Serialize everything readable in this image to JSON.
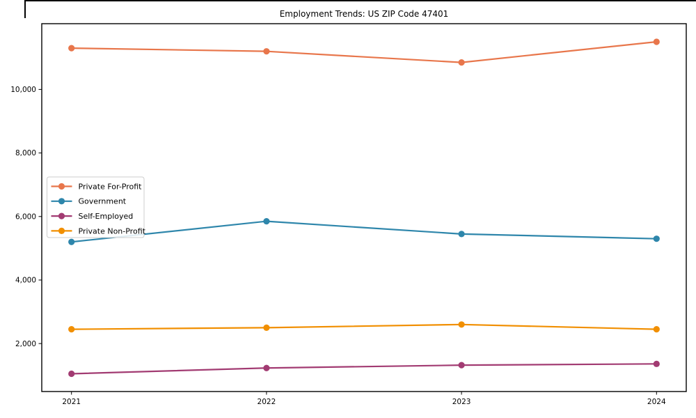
{
  "figure": {
    "background": "#ffffff",
    "frame_color": "#000000"
  },
  "chart_data": {
    "type": "line",
    "title": "Employment Trends: US ZIP Code 47401",
    "xlabel": "",
    "ylabel": "",
    "x": [
      2021,
      2022,
      2023,
      2024
    ],
    "x_tick_labels": [
      "2021",
      "2022",
      "2023",
      "2024"
    ],
    "y_ticks": [
      2000,
      4000,
      6000,
      8000,
      10000
    ],
    "y_tick_labels": [
      "2,000",
      "4,000",
      "6,000",
      "8,000",
      "10,000"
    ],
    "ylim": [
      490,
      12070
    ],
    "grid": false,
    "legend_position": "center-left",
    "series": [
      {
        "name": "Private For-Profit",
        "color": "#E8764B",
        "values": [
          11300,
          11200,
          10850,
          11500
        ]
      },
      {
        "name": "Government",
        "color": "#2E86AB",
        "values": [
          5200,
          5850,
          5450,
          5300
        ]
      },
      {
        "name": "Self-Employed",
        "color": "#A23B72",
        "values": [
          1050,
          1230,
          1320,
          1360
        ]
      },
      {
        "name": "Private Non-Profit",
        "color": "#F18F01",
        "values": [
          2450,
          2500,
          2600,
          2450
        ]
      }
    ]
  }
}
